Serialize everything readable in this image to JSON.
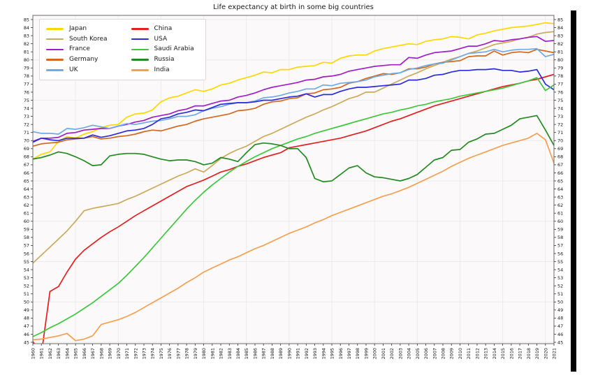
{
  "title": "Life expectancy at birth in some big countries",
  "style": {
    "plot_bg": "#fbf9f9",
    "grid_color": "#edeaea",
    "spine_color": "#6b6b6b",
    "tick_color": "#333333",
    "label_color": "#111111",
    "right_bar_color": "#000000"
  },
  "chart_data": {
    "type": "line",
    "title": "Life expectancy at birth in some big countries",
    "xlabel": "",
    "ylabel": "",
    "ylim": [
      45,
      85
    ],
    "ytick_step": 1,
    "yticks": [
      45,
      46,
      47,
      48,
      49,
      50,
      51,
      52,
      53,
      54,
      55,
      56,
      57,
      58,
      59,
      60,
      61,
      62,
      63,
      64,
      65,
      66,
      67,
      68,
      69,
      70,
      71,
      72,
      73,
      74,
      75,
      76,
      77,
      78,
      79,
      80,
      81,
      82,
      83,
      84,
      85
    ],
    "grid": "light, every 5 years / 5 units",
    "legend_position": "upper left",
    "legend_columns": 2,
    "x": [
      1960,
      1961,
      1962,
      1963,
      1964,
      1965,
      1966,
      1967,
      1968,
      1969,
      1970,
      1971,
      1972,
      1973,
      1974,
      1975,
      1976,
      1977,
      1978,
      1979,
      1980,
      1981,
      1982,
      1983,
      1984,
      1985,
      1986,
      1987,
      1988,
      1989,
      1990,
      1991,
      1992,
      1993,
      1994,
      1995,
      1996,
      1997,
      1998,
      1999,
      2000,
      2001,
      2002,
      2003,
      2004,
      2005,
      2006,
      2007,
      2008,
      2009,
      2010,
      2011,
      2012,
      2013,
      2014,
      2015,
      2016,
      2017,
      2018,
      2019,
      2020,
      2021
    ],
    "series": [
      {
        "name": "Japan",
        "color": "#FFD700",
        "values": [
          67.7,
          68.3,
          68.6,
          69.9,
          70.5,
          70.3,
          70.8,
          71.1,
          71.6,
          71.9,
          72.0,
          72.9,
          73.3,
          73.4,
          73.8,
          74.8,
          75.3,
          75.5,
          75.9,
          76.3,
          76.1,
          76.4,
          76.9,
          77.1,
          77.5,
          77.8,
          78.1,
          78.5,
          78.4,
          78.8,
          78.8,
          79.1,
          79.2,
          79.3,
          79.7,
          79.6,
          80.2,
          80.5,
          80.6,
          80.6,
          81.1,
          81.4,
          81.6,
          81.8,
          82.0,
          81.9,
          82.3,
          82.5,
          82.6,
          82.9,
          82.8,
          82.6,
          83.1,
          83.3,
          83.6,
          83.8,
          84.0,
          84.1,
          84.2,
          84.4,
          84.6,
          84.5
        ]
      },
      {
        "name": "South Korea",
        "color": "#CBAA5A",
        "values": [
          54.8,
          55.8,
          56.8,
          57.8,
          58.8,
          60.0,
          61.3,
          61.6,
          61.8,
          62.0,
          62.2,
          62.7,
          63.1,
          63.6,
          64.1,
          64.6,
          65.1,
          65.6,
          66.0,
          66.5,
          66.1,
          66.9,
          67.8,
          68.4,
          68.9,
          69.3,
          69.9,
          70.5,
          70.9,
          71.4,
          71.9,
          72.4,
          72.9,
          73.3,
          73.8,
          74.2,
          74.7,
          75.2,
          75.5,
          76.0,
          76.0,
          76.5,
          77.0,
          77.5,
          78.0,
          78.4,
          78.9,
          79.3,
          79.7,
          80.1,
          80.4,
          80.8,
          81.1,
          81.5,
          81.9,
          82.1,
          82.3,
          82.6,
          82.8,
          83.2,
          83.4,
          83.5
        ]
      },
      {
        "name": "France",
        "color": "#A01EC8",
        "values": [
          69.9,
          70.3,
          70.3,
          70.4,
          70.9,
          71.0,
          71.3,
          71.4,
          71.5,
          71.5,
          71.8,
          72.0,
          72.3,
          72.5,
          72.9,
          73.1,
          73.3,
          73.7,
          73.9,
          74.3,
          74.3,
          74.6,
          74.9,
          75.0,
          75.4,
          75.6,
          75.9,
          76.3,
          76.6,
          76.8,
          77.0,
          77.2,
          77.5,
          77.6,
          77.9,
          78.0,
          78.2,
          78.6,
          78.8,
          79.0,
          79.2,
          79.3,
          79.4,
          79.4,
          80.3,
          80.2,
          80.6,
          80.9,
          81.0,
          81.1,
          81.4,
          81.7,
          81.7,
          82.0,
          82.4,
          82.3,
          82.5,
          82.6,
          82.8,
          82.9,
          82.3,
          82.4
        ]
      },
      {
        "name": "Germany",
        "color": "#D2691E",
        "values": [
          69.3,
          69.6,
          69.7,
          69.8,
          70.1,
          70.2,
          70.3,
          70.5,
          70.2,
          70.3,
          70.5,
          70.6,
          70.8,
          71.1,
          71.3,
          71.2,
          71.5,
          71.8,
          72.0,
          72.4,
          72.7,
          72.9,
          73.1,
          73.3,
          73.7,
          73.8,
          74.0,
          74.5,
          74.8,
          74.9,
          75.2,
          75.3,
          75.8,
          75.9,
          76.3,
          76.4,
          76.6,
          77.1,
          77.3,
          77.7,
          78.0,
          78.3,
          78.2,
          78.4,
          78.9,
          78.9,
          79.1,
          79.5,
          79.7,
          79.8,
          79.9,
          80.4,
          80.5,
          80.5,
          81.1,
          80.6,
          80.9,
          81.0,
          80.9,
          81.3,
          81.1,
          80.9
        ]
      },
      {
        "name": "UK",
        "color": "#6EAAE6",
        "values": [
          71.1,
          70.9,
          70.9,
          70.8,
          71.5,
          71.4,
          71.6,
          71.9,
          71.7,
          71.5,
          71.8,
          72.1,
          72.0,
          72.2,
          72.4,
          72.5,
          72.7,
          73.0,
          73.0,
          73.2,
          73.7,
          74.0,
          74.2,
          74.5,
          74.7,
          74.7,
          74.9,
          75.3,
          75.4,
          75.6,
          75.9,
          76.1,
          76.4,
          76.4,
          76.9,
          76.8,
          77.1,
          77.2,
          77.3,
          77.5,
          77.9,
          78.1,
          78.3,
          78.4,
          78.8,
          79.0,
          79.3,
          79.5,
          79.6,
          80.0,
          80.4,
          80.8,
          80.9,
          81.0,
          81.3,
          81.0,
          81.2,
          81.3,
          81.3,
          81.4,
          80.4,
          80.7
        ]
      },
      {
        "name": "China",
        "color": "#E61E1E",
        "values": [
          45.1,
          43.5,
          51.3,
          51.9,
          53.7,
          55.3,
          56.4,
          57.2,
          58.0,
          58.7,
          59.3,
          60.0,
          60.7,
          61.3,
          61.9,
          62.5,
          63.1,
          63.7,
          64.3,
          64.7,
          65.1,
          65.6,
          66.1,
          66.4,
          66.8,
          67.1,
          67.5,
          67.9,
          68.2,
          68.5,
          69.1,
          69.3,
          69.5,
          69.7,
          69.9,
          70.1,
          70.3,
          70.6,
          70.9,
          71.2,
          71.6,
          72.0,
          72.4,
          72.7,
          73.1,
          73.5,
          73.9,
          74.3,
          74.6,
          74.9,
          75.2,
          75.5,
          75.8,
          76.1,
          76.4,
          76.7,
          76.9,
          77.1,
          77.4,
          77.6,
          77.9,
          78.2
        ]
      },
      {
        "name": "USA",
        "color": "#2A2CDC",
        "values": [
          69.8,
          70.3,
          70.1,
          70.0,
          70.3,
          70.3,
          70.3,
          70.7,
          70.4,
          70.6,
          70.9,
          71.2,
          71.3,
          71.5,
          72.0,
          72.7,
          72.9,
          73.3,
          73.5,
          73.8,
          73.7,
          74.1,
          74.5,
          74.6,
          74.7,
          74.7,
          74.8,
          75.0,
          75.0,
          75.2,
          75.4,
          75.5,
          75.8,
          75.4,
          75.7,
          75.7,
          76.1,
          76.4,
          76.6,
          76.6,
          76.7,
          76.8,
          76.9,
          77.0,
          77.5,
          77.5,
          77.7,
          78.1,
          78.2,
          78.5,
          78.7,
          78.7,
          78.8,
          78.8,
          78.9,
          78.7,
          78.7,
          78.5,
          78.6,
          78.8,
          77.0,
          76.3
        ]
      },
      {
        "name": "Saudi Arabia",
        "color": "#3CC83C",
        "values": [
          45.7,
          46.2,
          46.8,
          47.3,
          47.9,
          48.5,
          49.2,
          49.9,
          50.7,
          51.5,
          52.3,
          53.3,
          54.4,
          55.5,
          56.7,
          57.9,
          59.1,
          60.3,
          61.5,
          62.6,
          63.6,
          64.5,
          65.3,
          66.1,
          66.8,
          67.4,
          68.0,
          68.5,
          69.0,
          69.4,
          69.8,
          70.2,
          70.5,
          70.9,
          71.2,
          71.5,
          71.8,
          72.1,
          72.4,
          72.7,
          73.0,
          73.3,
          73.5,
          73.8,
          74.0,
          74.3,
          74.5,
          74.8,
          75.0,
          75.2,
          75.5,
          75.7,
          75.9,
          76.1,
          76.3,
          76.5,
          76.8,
          77.1,
          77.4,
          77.8,
          76.2,
          76.9
        ]
      },
      {
        "name": "Russia",
        "color": "#228B22",
        "values": [
          67.7,
          67.9,
          68.2,
          68.6,
          68.4,
          68.0,
          67.5,
          66.9,
          67.0,
          68.1,
          68.3,
          68.4,
          68.4,
          68.3,
          68.0,
          67.7,
          67.5,
          67.6,
          67.6,
          67.4,
          67.0,
          67.2,
          67.9,
          67.7,
          67.4,
          68.5,
          69.5,
          69.7,
          69.6,
          69.4,
          69.0,
          69.0,
          67.9,
          65.3,
          64.9,
          65.0,
          65.8,
          66.6,
          66.9,
          66.0,
          65.5,
          65.4,
          65.2,
          65.0,
          65.3,
          65.8,
          66.7,
          67.6,
          67.9,
          68.8,
          68.9,
          69.8,
          70.2,
          70.8,
          70.9,
          71.4,
          71.9,
          72.7,
          72.9,
          73.1,
          71.3,
          69.4
        ]
      },
      {
        "name": "India",
        "color": "#F4A050",
        "values": [
          45.3,
          45.4,
          45.6,
          45.8,
          46.1,
          45.2,
          45.4,
          45.8,
          47.2,
          47.5,
          47.8,
          48.2,
          48.7,
          49.3,
          49.9,
          50.5,
          51.1,
          51.7,
          52.4,
          53.0,
          53.7,
          54.2,
          54.7,
          55.2,
          55.6,
          56.1,
          56.6,
          57.0,
          57.5,
          58.0,
          58.5,
          58.9,
          59.3,
          59.8,
          60.2,
          60.7,
          61.1,
          61.5,
          61.9,
          62.3,
          62.7,
          63.1,
          63.4,
          63.8,
          64.2,
          64.7,
          65.2,
          65.7,
          66.2,
          66.8,
          67.3,
          67.8,
          68.2,
          68.6,
          69.0,
          69.4,
          69.7,
          70.0,
          70.3,
          70.9,
          70.1,
          67.2
        ]
      }
    ]
  }
}
